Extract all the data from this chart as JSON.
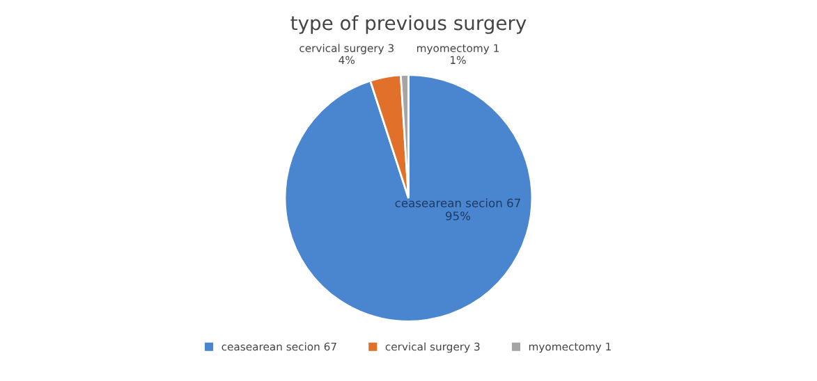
{
  "chart_data": {
    "type": "pie",
    "title": "type of previous surgery",
    "categories": [
      "ceasearean secion 67",
      "cervical surgery 3",
      "myomectomy 1"
    ],
    "values": [
      95,
      4,
      1
    ],
    "value_labels": [
      "95%",
      "4%",
      "1%"
    ],
    "colors": [
      "#4a86d0",
      "#e0702a",
      "#a5a5a5"
    ],
    "legend": "bottom"
  }
}
